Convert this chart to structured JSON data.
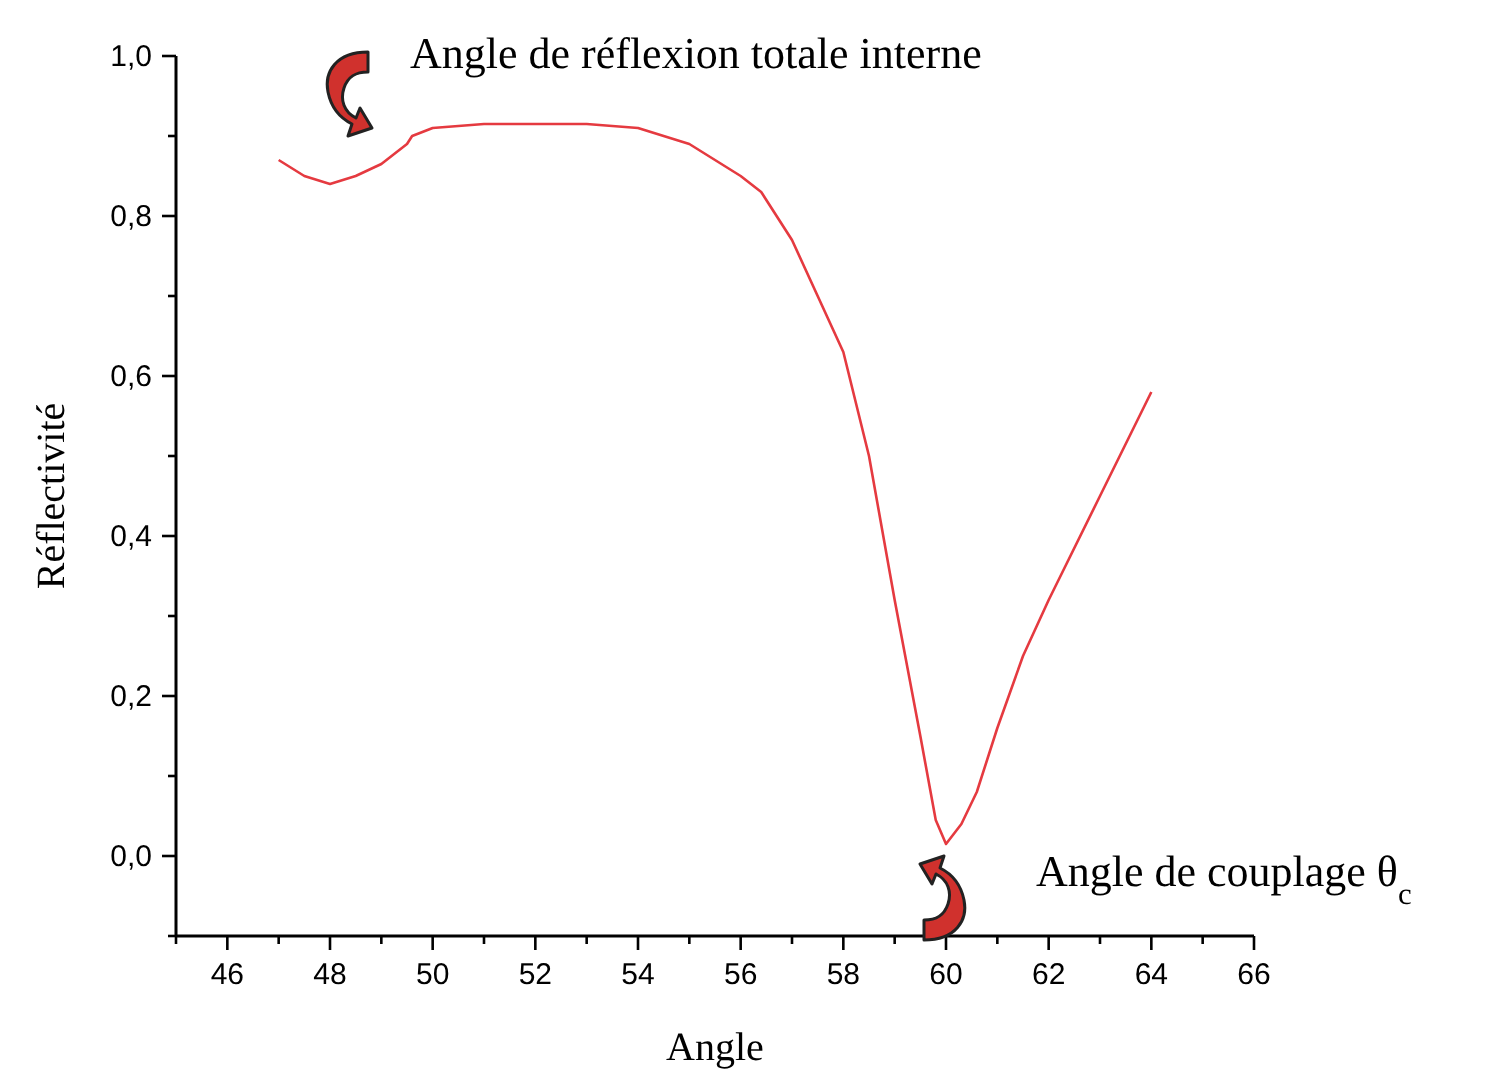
{
  "chart_data": {
    "type": "line",
    "xlabel": "Angle",
    "ylabel": "Réflectivité",
    "annotations": [
      "Angle de réflexion totale interne",
      "Angle de couplage θ$_{c}$"
    ],
    "xlim": [
      45,
      66
    ],
    "ylim": [
      -0.1,
      1.0
    ],
    "xticks": [
      {
        "value": 45,
        "label": null
      },
      46,
      {
        "value": 47,
        "label": null
      },
      48,
      {
        "value": 49,
        "label": null
      },
      50,
      {
        "value": 51,
        "label": null
      },
      52,
      {
        "value": 53,
        "label": null
      },
      54,
      {
        "value": 55,
        "label": null
      },
      56,
      {
        "value": 57,
        "label": null
      },
      58,
      {
        "value": 59,
        "label": null
      },
      60,
      {
        "value": 61,
        "label": null
      },
      62,
      {
        "value": 63,
        "label": null
      },
      64,
      {
        "value": 65,
        "label": null
      },
      66
    ],
    "yticks": [
      {
        "value": -0.1,
        "label": null
      },
      {
        "value": 0,
        "label": "0,0"
      },
      {
        "value": 0.1,
        "label": null
      },
      {
        "value": 0.2,
        "label": "0,2"
      },
      {
        "value": 0.3,
        "label": null
      },
      {
        "value": 0.4,
        "label": "0,4"
      },
      {
        "value": 0.5,
        "label": null
      },
      {
        "value": 0.6,
        "label": "0,6"
      },
      {
        "value": 0.7,
        "label": null
      },
      {
        "value": 0.8,
        "label": "0,8"
      },
      {
        "value": 0.9,
        "label": null
      },
      {
        "value": 1.0,
        "label": "1,0"
      }
    ],
    "grid": false,
    "marker": "none",
    "line_style": "solid",
    "series": [
      {
        "color": "#e53a40",
        "x": [
          47,
          47.5,
          48,
          48.5,
          49,
          49.5,
          49.6,
          49.8,
          50,
          51,
          52,
          53,
          54,
          55,
          56,
          56.4,
          57,
          57.5,
          58,
          58.5,
          59,
          59.5,
          59.8,
          60,
          60.3,
          60.6,
          61,
          61.5,
          62,
          63,
          64
        ],
        "values": [
          0.87,
          0.85,
          0.84,
          0.85,
          0.865,
          0.89,
          0.9,
          0.905,
          0.91,
          0.915,
          0.915,
          0.915,
          0.91,
          0.89,
          0.85,
          0.83,
          0.77,
          0.7,
          0.63,
          0.5,
          0.32,
          0.15,
          0.045,
          0.015,
          0.04,
          0.08,
          0.16,
          0.25,
          0.32,
          0.45,
          0.58
        ]
      }
    ]
  }
}
